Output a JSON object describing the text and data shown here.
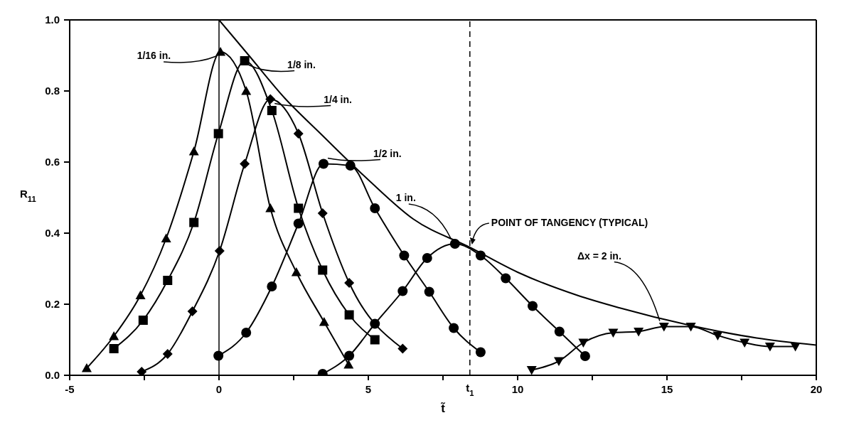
{
  "chart_data": {
    "type": "line",
    "xlabel": "t̃",
    "ylabel": "R$_{11}$",
    "xlim": [
      -5,
      20
    ],
    "ylim": [
      0,
      1
    ],
    "xticks": [
      -5,
      {
        "value": -2.5,
        "label": null
      },
      0,
      {
        "value": 2.5,
        "label": null
      },
      5,
      {
        "value": 7.5,
        "label": null
      },
      10,
      {
        "value": 12.5,
        "label": null
      },
      15,
      {
        "value": 17.5,
        "label": null
      },
      20
    ],
    "yticks": [
      {
        "value": 0,
        "label": "0.0"
      },
      {
        "value": 0.2,
        "label": "0.2"
      },
      {
        "value": 0.4,
        "label": "0.4"
      },
      {
        "value": 0.6,
        "label": "0.6"
      },
      {
        "value": 0.8,
        "label": "0.8"
      },
      {
        "value": 1,
        "label": "1.0"
      }
    ],
    "grid": false,
    "line_style": "solid",
    "ref_lines": [
      {
        "axis": "x",
        "value": 0,
        "line_style": "solid"
      },
      {
        "axis": "x",
        "value": 8.4,
        "line_style": "dashed",
        "label": "t$_{1}$"
      }
    ],
    "annotations": [
      {
        "text": "POINT OF TANGENCY (TYPICAL)",
        "x": 8.4,
        "y": 0.36
      }
    ],
    "series": [
      {
        "name": "1/16 in.",
        "color": "#000000",
        "marker": "triangle",
        "x": [
          -4.43,
          -3.52,
          -2.63,
          -1.77,
          -0.84,
          0.05,
          0.91,
          1.72,
          2.59,
          3.52,
          4.34
        ],
        "values": [
          0.02,
          0.11,
          0.225,
          0.385,
          0.63,
          0.91,
          0.8,
          0.47,
          0.29,
          0.15,
          0.03
        ]
      },
      {
        "name": "1/8 in.",
        "color": "#000000",
        "marker": "square",
        "x": [
          -3.52,
          -2.54,
          -1.72,
          -0.84,
          -0.02,
          0.86,
          1.77,
          2.66,
          3.47,
          4.36,
          5.22
        ],
        "values": [
          0.075,
          0.155,
          0.267,
          0.43,
          0.68,
          0.885,
          0.745,
          0.47,
          0.296,
          0.17,
          0.1
        ]
      },
      {
        "name": "1/4 in.",
        "color": "#000000",
        "marker": "diamond",
        "x": [
          -2.59,
          -1.72,
          -0.89,
          0.02,
          0.86,
          1.72,
          2.66,
          3.47,
          4.36,
          6.15
        ],
        "values": [
          0.01,
          0.06,
          0.18,
          0.35,
          0.595,
          0.777,
          0.68,
          0.456,
          0.26,
          0.075
        ]
      },
      {
        "name": "1/2 in.",
        "color": "#000000",
        "marker": "circle",
        "x": [
          -0.02,
          0.91,
          1.77,
          2.66,
          3.5,
          4.4,
          5.22,
          6.2,
          7.04,
          7.86,
          8.76
        ],
        "values": [
          0.055,
          0.12,
          0.25,
          0.427,
          0.595,
          0.59,
          0.47,
          0.337,
          0.235,
          0.133,
          0.065
        ]
      },
      {
        "name": "1 in.",
        "color": "#000000",
        "marker": "circle",
        "x": [
          3.47,
          4.36,
          5.22,
          6.15,
          6.97,
          7.9,
          8.76,
          9.6,
          10.5,
          11.4,
          12.26
        ],
        "values": [
          0.004,
          0.055,
          0.145,
          0.237,
          0.33,
          0.37,
          0.337,
          0.273,
          0.195,
          0.123,
          0.054
        ]
      },
      {
        "name": "Δx = 2 in.",
        "color": "#000000",
        "marker": "triangle-down",
        "x": [
          10.47,
          11.38,
          12.2,
          13.2,
          14.05,
          14.9,
          15.8,
          16.7,
          17.6,
          18.45,
          19.3
        ],
        "values": [
          0.015,
          0.04,
          0.092,
          0.12,
          0.123,
          0.137,
          0.137,
          0.112,
          0.092,
          0.081,
          0.081
        ]
      },
      {
        "color": "#000000",
        "marker": "none",
        "x": [
          0,
          1,
          2.2,
          3.4,
          5,
          6.5,
          8.4,
          10,
          12,
          13.4,
          15.8,
          18,
          20
        ],
        "values": [
          1,
          0.9,
          0.78,
          0.68,
          0.55,
          0.44,
          0.36,
          0.29,
          0.225,
          0.19,
          0.14,
          0.105,
          0.085
        ]
      }
    ]
  }
}
